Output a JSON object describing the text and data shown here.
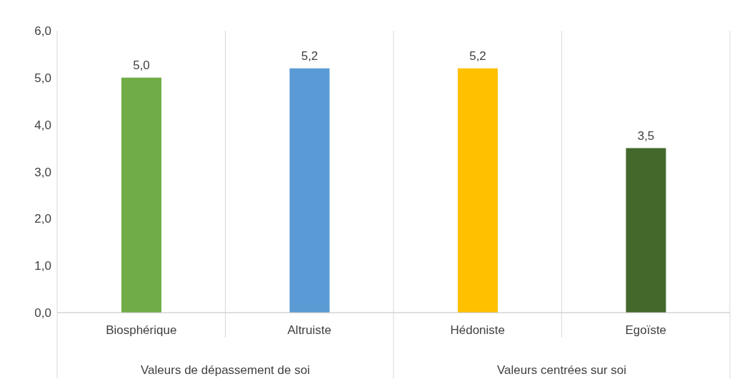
{
  "chart_data": {
    "type": "bar",
    "categories": [
      "Biosphérique",
      "Altruiste",
      "Hédoniste",
      "Egoïste"
    ],
    "values": [
      5.0,
      5.2,
      5.2,
      3.5
    ],
    "colors": [
      "#70ad47",
      "#5b9bd5",
      "#ffc000",
      "#43682b"
    ],
    "value_labels": [
      "5,0",
      "5,2",
      "5,2",
      "3,5"
    ],
    "ylim": [
      0,
      6
    ],
    "yticks": [
      {
        "value": 0,
        "label": "0,0"
      },
      {
        "value": 1,
        "label": "1,0"
      },
      {
        "value": 2,
        "label": "2,0"
      },
      {
        "value": 3,
        "label": "3,0"
      },
      {
        "value": 4,
        "label": "4,0"
      },
      {
        "value": 5,
        "label": "5,0"
      },
      {
        "value": 6,
        "label": "6,0"
      }
    ],
    "grid": "x",
    "annotations": [
      "Valeurs de dépassement de soi",
      "Valeurs centrées sur soi"
    ]
  }
}
